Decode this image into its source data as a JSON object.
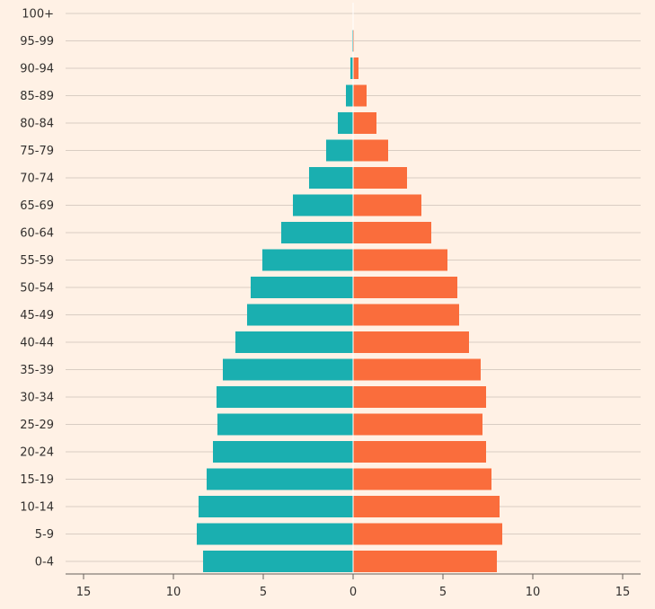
{
  "chart_data": {
    "type": "bar",
    "orientation": "horizontal",
    "layout": "population-pyramid",
    "categories": [
      "100+",
      "95-99",
      "90-94",
      "85-89",
      "80-84",
      "75-79",
      "70-74",
      "65-69",
      "60-64",
      "55-59",
      "50-54",
      "45-49",
      "40-44",
      "35-39",
      "30-34",
      "25-29",
      "20-24",
      "15-19",
      "10-14",
      "5-9",
      "0-4"
    ],
    "series": [
      {
        "color": "#1aafb0",
        "side": "left",
        "values": [
          0,
          0.02,
          0.15,
          0.4,
          0.85,
          1.5,
          2.45,
          3.35,
          4.0,
          5.05,
          5.7,
          5.9,
          6.55,
          7.25,
          7.6,
          7.55,
          7.8,
          8.15,
          8.6,
          8.7,
          8.35
        ]
      },
      {
        "color": "#fa6d3c",
        "side": "right",
        "values": [
          0,
          0.05,
          0.3,
          0.75,
          1.3,
          1.95,
          3.0,
          3.8,
          4.35,
          5.25,
          5.8,
          5.9,
          6.45,
          7.1,
          7.4,
          7.2,
          7.4,
          7.7,
          8.15,
          8.3,
          8.0
        ]
      }
    ],
    "xlim": [
      -16,
      16
    ],
    "xticks": [
      -15,
      -10,
      -5,
      0,
      5,
      10,
      15
    ],
    "xtick_labels": [
      "15",
      "10",
      "5",
      "0",
      "5",
      "10",
      "15"
    ],
    "title": "",
    "xlabel": "",
    "ylabel": "",
    "grid": true,
    "legend": "none"
  }
}
